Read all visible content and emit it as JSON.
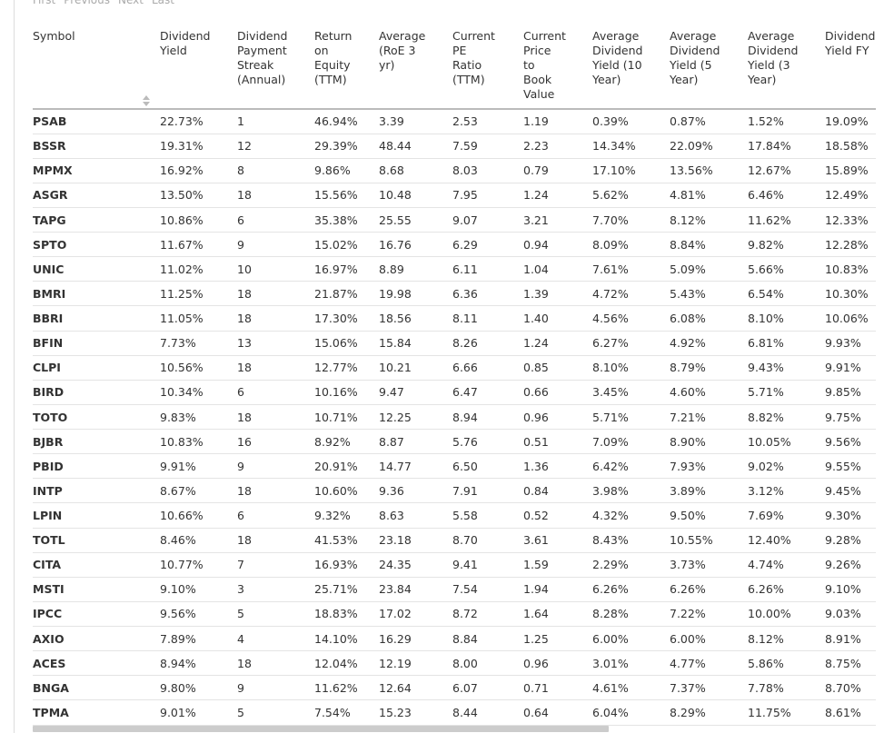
{
  "pagination": [
    "First",
    "Previous",
    "Next",
    "Last"
  ],
  "table": {
    "headers": [
      "Symbol",
      "Dividend\nYield",
      "Dividend\nPayment\nStreak\n(Annual)",
      "Return\non\nEquity\n(TTM)",
      "Average\n(RoE 3\nyr)",
      "Current\nPE\nRatio\n(TTM)",
      "Current\nPrice\nto\nBook\nValue",
      "Average\nDividend\nYield (10\nYear)",
      "Average\nDividend\nYield (5\nYear)",
      "Average\nDividend\nYield (3\nYear)",
      "Dividend\nYield FY"
    ],
    "rows": [
      [
        "PSAB",
        "22.73%",
        "1",
        "46.94%",
        "3.39",
        "2.53",
        "1.19",
        "0.39%",
        "0.87%",
        "1.52%",
        "19.09%"
      ],
      [
        "BSSR",
        "19.31%",
        "12",
        "29.39%",
        "48.44",
        "7.59",
        "2.23",
        "14.34%",
        "22.09%",
        "17.84%",
        "18.58%"
      ],
      [
        "MPMX",
        "16.92%",
        "8",
        "9.86%",
        "8.68",
        "8.03",
        "0.79",
        "17.10%",
        "13.56%",
        "12.67%",
        "15.89%"
      ],
      [
        "ASGR",
        "13.50%",
        "18",
        "15.56%",
        "10.48",
        "7.95",
        "1.24",
        "5.62%",
        "4.81%",
        "6.46%",
        "12.49%"
      ],
      [
        "TAPG",
        "10.86%",
        "6",
        "35.38%",
        "25.55",
        "9.07",
        "3.21",
        "7.70%",
        "8.12%",
        "11.62%",
        "12.33%"
      ],
      [
        "SPTO",
        "11.67%",
        "9",
        "15.02%",
        "16.76",
        "6.29",
        "0.94",
        "8.09%",
        "8.84%",
        "9.82%",
        "12.28%"
      ],
      [
        "UNIC",
        "11.02%",
        "10",
        "16.97%",
        "8.89",
        "6.11",
        "1.04",
        "7.61%",
        "5.09%",
        "5.66%",
        "10.83%"
      ],
      [
        "BMRI",
        "11.25%",
        "18",
        "21.87%",
        "19.98",
        "6.36",
        "1.39",
        "4.72%",
        "5.43%",
        "6.54%",
        "10.30%"
      ],
      [
        "BBRI",
        "11.05%",
        "18",
        "17.30%",
        "18.56",
        "8.11",
        "1.40",
        "4.56%",
        "6.08%",
        "8.10%",
        "10.06%"
      ],
      [
        "BFIN",
        "7.73%",
        "13",
        "15.06%",
        "15.84",
        "8.26",
        "1.24",
        "6.27%",
        "4.92%",
        "6.81%",
        "9.93%"
      ],
      [
        "CLPI",
        "10.56%",
        "18",
        "12.77%",
        "10.21",
        "6.66",
        "0.85",
        "8.10%",
        "8.79%",
        "9.43%",
        "9.91%"
      ],
      [
        "BIRD",
        "10.34%",
        "6",
        "10.16%",
        "9.47",
        "6.47",
        "0.66",
        "3.45%",
        "4.60%",
        "5.71%",
        "9.85%"
      ],
      [
        "TOTO",
        "9.83%",
        "18",
        "10.71%",
        "12.25",
        "8.94",
        "0.96",
        "5.71%",
        "7.21%",
        "8.82%",
        "9.75%"
      ],
      [
        "BJBR",
        "10.83%",
        "16",
        "8.92%",
        "8.87",
        "5.76",
        "0.51",
        "7.09%",
        "8.90%",
        "10.05%",
        "9.56%"
      ],
      [
        "PBID",
        "9.91%",
        "9",
        "20.91%",
        "14.77",
        "6.50",
        "1.36",
        "6.42%",
        "7.93%",
        "9.02%",
        "9.55%"
      ],
      [
        "INTP",
        "8.67%",
        "18",
        "10.60%",
        "9.36",
        "7.91",
        "0.84",
        "3.98%",
        "3.89%",
        "3.12%",
        "9.45%"
      ],
      [
        "LPIN",
        "10.66%",
        "6",
        "9.32%",
        "8.63",
        "5.58",
        "0.52",
        "4.32%",
        "9.50%",
        "7.69%",
        "9.30%"
      ],
      [
        "TOTL",
        "8.46%",
        "18",
        "41.53%",
        "23.18",
        "8.70",
        "3.61",
        "8.43%",
        "10.55%",
        "12.40%",
        "9.28%"
      ],
      [
        "CITA",
        "10.77%",
        "7",
        "16.93%",
        "24.35",
        "9.41",
        "1.59",
        "2.29%",
        "3.73%",
        "4.74%",
        "9.26%"
      ],
      [
        "MSTI",
        "9.10%",
        "3",
        "25.71%",
        "23.84",
        "7.54",
        "1.94",
        "6.26%",
        "6.26%",
        "6.26%",
        "9.10%"
      ],
      [
        "IPCC",
        "9.56%",
        "5",
        "18.83%",
        "17.02",
        "8.72",
        "1.64",
        "8.28%",
        "7.22%",
        "10.00%",
        "9.03%"
      ],
      [
        "AXIO",
        "7.89%",
        "4",
        "14.10%",
        "16.29",
        "8.84",
        "1.25",
        "6.00%",
        "6.00%",
        "8.12%",
        "8.91%"
      ],
      [
        "ACES",
        "8.94%",
        "18",
        "12.04%",
        "12.19",
        "8.00",
        "0.96",
        "3.01%",
        "4.77%",
        "5.86%",
        "8.75%"
      ],
      [
        "BNGA",
        "9.80%",
        "9",
        "11.62%",
        "12.64",
        "6.07",
        "0.71",
        "4.61%",
        "7.37%",
        "7.78%",
        "8.70%"
      ],
      [
        "TPMA",
        "9.01%",
        "5",
        "7.54%",
        "15.23",
        "8.44",
        "0.64",
        "6.04%",
        "8.29%",
        "11.75%",
        "8.61%"
      ]
    ]
  }
}
